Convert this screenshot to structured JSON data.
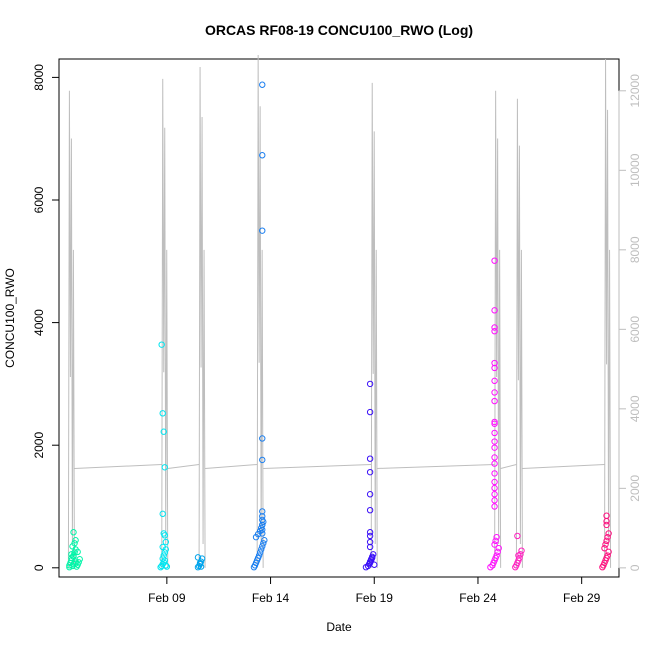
{
  "chart_data": {
    "type": "scatter",
    "title": "ORCAS RF08-19 CONCU100_RWO (Log)",
    "xlabel": "Date",
    "ylabel": "CONCU100_RWO",
    "x_ticks": [
      "Feb 09",
      "Feb 14",
      "Feb 19",
      "Feb 24",
      "Feb 29"
    ],
    "x_tick_days": [
      9,
      14,
      19,
      24,
      29
    ],
    "xlim_days": [
      3.8,
      30.8
    ],
    "y_ticks": [
      0,
      2000,
      4000,
      6000,
      8000
    ],
    "ylim": [
      -150,
      8300
    ],
    "y2_ticks": [
      0,
      2000,
      4000,
      6000,
      8000,
      10000,
      12000
    ],
    "y2lim": [
      -230,
      12800
    ],
    "grid": false,
    "line_color": "#bebebe",
    "series": [
      {
        "color": "#00f5a8",
        "x": [
          4.3,
          4.3,
          4.35,
          4.4,
          4.4,
          4.45,
          4.5,
          4.5,
          4.55,
          4.6,
          4.6,
          4.65,
          4.7,
          4.75,
          4.8,
          4.45,
          4.55,
          4.5,
          4.6,
          4.4,
          4.7,
          4.5,
          4.6
        ],
        "y": [
          10,
          40,
          80,
          120,
          160,
          30,
          200,
          60,
          250,
          100,
          300,
          20,
          50,
          90,
          140,
          350,
          400,
          180,
          70,
          220,
          260,
          580,
          450
        ]
      },
      {
        "color": "#00e5f0",
        "x": [
          8.7,
          8.75,
          8.8,
          8.85,
          8.9,
          8.95,
          9.0,
          8.8,
          8.85,
          8.9,
          8.95,
          8.75,
          8.8,
          8.85,
          8.9,
          8.8,
          8.85,
          8.9,
          8.95,
          8.8
        ],
        "y": [
          10,
          30,
          60,
          90,
          120,
          40,
          20,
          150,
          200,
          250,
          300,
          3640,
          2520,
          2220,
          1640,
          880,
          560,
          530,
          420,
          340
        ]
      },
      {
        "color": "#00a4ec",
        "x": [
          10.5,
          10.55,
          10.6,
          10.65,
          10.7,
          10.5,
          10.6,
          10.65
        ],
        "y": [
          10,
          30,
          60,
          100,
          150,
          170,
          80,
          20
        ]
      },
      {
        "color": "#1b7ff0",
        "x": [
          13.2,
          13.25,
          13.3,
          13.35,
          13.4,
          13.45,
          13.5,
          13.55,
          13.6,
          13.65,
          13.7,
          13.3,
          13.4,
          13.5,
          13.55,
          13.6,
          13.65,
          13.6,
          13.6,
          13.6,
          13.6,
          13.6,
          13.6,
          13.6,
          13.6,
          13.6,
          13.6,
          13.6
        ],
        "y": [
          10,
          40,
          80,
          120,
          160,
          200,
          250,
          300,
          350,
          400,
          450,
          500,
          550,
          600,
          650,
          700,
          750,
          7880,
          6730,
          5500,
          2110,
          1760,
          920,
          840,
          780,
          700,
          620,
          560
        ]
      },
      {
        "color": "#3b10f8",
        "x": [
          18.6,
          18.7,
          18.75,
          18.8,
          18.85,
          18.9,
          18.95,
          19.0,
          18.8,
          18.85,
          18.9,
          18.8,
          18.8,
          18.8,
          18.8,
          18.8,
          18.8,
          18.8,
          18.8,
          18.8,
          18.8
        ],
        "y": [
          10,
          30,
          60,
          100,
          140,
          180,
          220,
          50,
          80,
          120,
          160,
          3000,
          2540,
          1780,
          1560,
          1200,
          940,
          580,
          520,
          420,
          340
        ]
      },
      {
        "color": "#ff10ff",
        "x": [
          24.6,
          24.7,
          24.75,
          24.8,
          24.85,
          24.9,
          24.95,
          25.0,
          24.8,
          24.85,
          24.9,
          24.8,
          24.8,
          24.8,
          24.8,
          24.8,
          24.8,
          24.8,
          24.8,
          24.8,
          24.8,
          24.8,
          24.8,
          24.8,
          24.8,
          24.8,
          24.8,
          24.8,
          24.8,
          24.8,
          24.8,
          24.8,
          24.8
        ],
        "y": [
          10,
          40,
          80,
          120,
          160,
          200,
          260,
          320,
          380,
          440,
          500,
          5010,
          4200,
          3920,
          3860,
          3340,
          3260,
          3050,
          2860,
          2720,
          2380,
          2350,
          2200,
          2060,
          1960,
          1800,
          1700,
          1540,
          1400,
          1300,
          1200,
          1100,
          1000
        ]
      },
      {
        "color": "#ff20c0",
        "x": [
          25.8,
          25.85,
          25.9,
          25.95,
          26.0,
          26.05,
          26.1,
          25.9,
          25.95
        ],
        "y": [
          10,
          40,
          80,
          120,
          160,
          220,
          280,
          520,
          200
        ]
      },
      {
        "color": "#ff1080",
        "x": [
          30.0,
          30.05,
          30.1,
          30.15,
          30.2,
          30.25,
          30.3,
          30.1,
          30.15,
          30.2,
          30.25,
          30.3,
          30.2,
          30.2,
          30.2
        ],
        "y": [
          10,
          40,
          80,
          120,
          160,
          200,
          260,
          320,
          380,
          440,
          500,
          560,
          850,
          760,
          700
        ]
      }
    ]
  }
}
